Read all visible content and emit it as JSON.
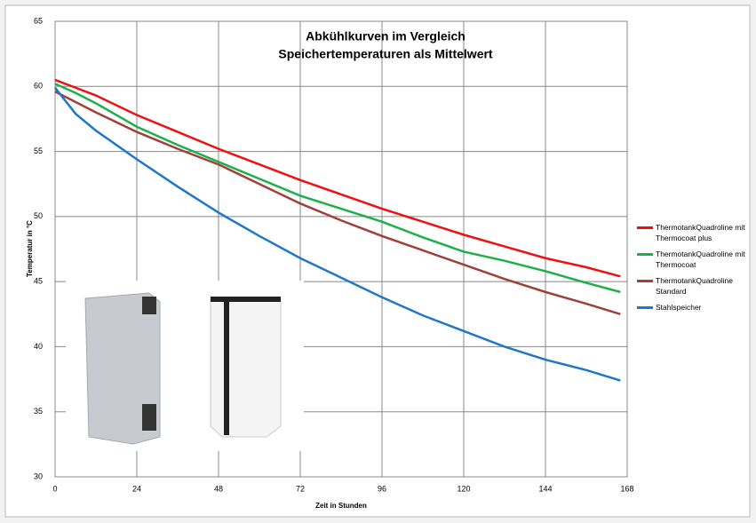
{
  "chart_data": {
    "type": "line",
    "title": "Abkühlkurven im Vergleich",
    "subtitle": "Speichertemperaturen als Mittelwert",
    "x_label": "Zeit in Stunden",
    "y_label": "Temperatur in °C",
    "x": [
      0,
      6,
      12,
      24,
      36,
      48,
      60,
      72,
      84,
      96,
      108,
      120,
      132,
      144,
      156,
      166
    ],
    "series": [
      {
        "name": "ThermotankQuadroline mit Thermocoat plus",
        "color": "#ee1111",
        "values": [
          60.5,
          59.9,
          59.3,
          57.8,
          56.5,
          55.2,
          54.0,
          52.8,
          51.7,
          50.6,
          49.6,
          48.6,
          47.7,
          46.8,
          46.1,
          45.4
        ]
      },
      {
        "name": "ThermotankQuadroline mit Thermocoat",
        "color": "#1db04a",
        "values": [
          60.2,
          59.5,
          58.7,
          56.9,
          55.5,
          54.2,
          52.9,
          51.6,
          50.6,
          49.6,
          48.4,
          47.3,
          46.6,
          45.8,
          44.9,
          44.2
        ]
      },
      {
        "name": "ThermotankQuadroline Standard",
        "color": "#a0403a",
        "values": [
          59.6,
          58.8,
          58.0,
          56.5,
          55.2,
          54.0,
          52.5,
          51.0,
          49.7,
          48.5,
          47.4,
          46.3,
          45.2,
          44.2,
          43.3,
          42.5
        ]
      },
      {
        "name": "Stahlspeicher",
        "color": "#1f77c8",
        "values": [
          59.9,
          57.9,
          56.6,
          54.4,
          52.3,
          50.3,
          48.5,
          46.8,
          45.3,
          43.8,
          42.4,
          41.2,
          40.0,
          39.0,
          38.2,
          37.4
        ]
      }
    ],
    "xlim": [
      0,
      168
    ],
    "xticks": [
      0,
      24,
      48,
      72,
      96,
      120,
      144,
      168
    ],
    "ylim": [
      30,
      65
    ],
    "yticks": [
      30,
      35,
      40,
      45,
      50,
      55,
      60,
      65
    ],
    "grid": true
  }
}
